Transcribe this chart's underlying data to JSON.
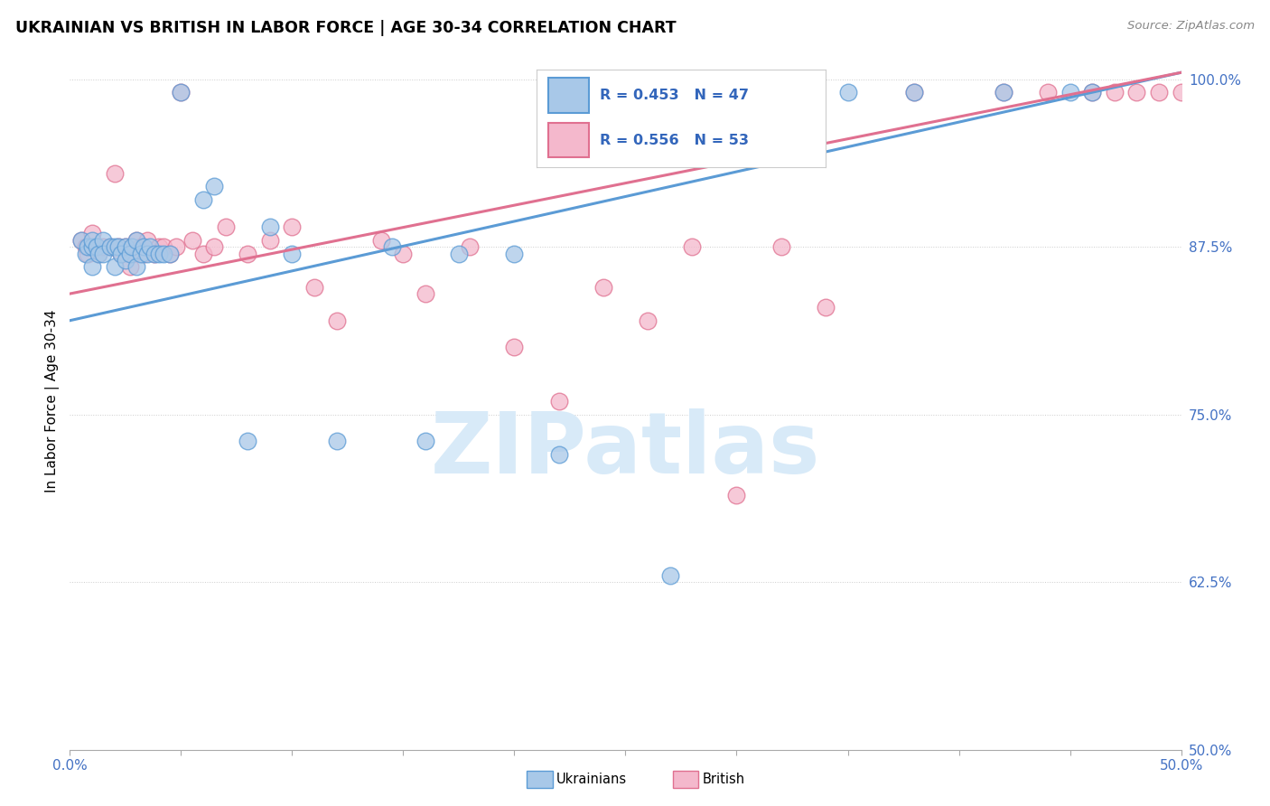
{
  "title": "UKRAINIAN VS BRITISH IN LABOR FORCE | AGE 30-34 CORRELATION CHART",
  "source": "Source: ZipAtlas.com",
  "ylabel": "In Labor Force | Age 30-34",
  "xlim": [
    0.0,
    0.5
  ],
  "ylim": [
    0.5,
    1.02
  ],
  "yticks": [
    0.5,
    0.625,
    0.75,
    0.875,
    1.0
  ],
  "ytick_labels": [
    "50.0%",
    "62.5%",
    "75.0%",
    "87.5%",
    "100.0%"
  ],
  "xticks": [
    0.0,
    0.05,
    0.1,
    0.15,
    0.2,
    0.25,
    0.3,
    0.35,
    0.4,
    0.45,
    0.5
  ],
  "xtick_labels": [
    "0.0%",
    "",
    "",
    "",
    "",
    "",
    "",
    "",
    "",
    "",
    "50.0%"
  ],
  "blue_R": 0.453,
  "blue_N": 47,
  "pink_R": 0.556,
  "pink_N": 53,
  "blue_fill": "#A8C8E8",
  "pink_fill": "#F4B8CC",
  "blue_edge": "#5B9BD5",
  "pink_edge": "#E07090",
  "blue_line": "#5B9BD5",
  "pink_line": "#E07090",
  "watermark_color": "#D8EAF8",
  "blue_scatter_x": [
    0.005,
    0.007,
    0.008,
    0.01,
    0.01,
    0.01,
    0.012,
    0.013,
    0.015,
    0.015,
    0.018,
    0.02,
    0.02,
    0.022,
    0.023,
    0.025,
    0.025,
    0.027,
    0.028,
    0.03,
    0.03,
    0.032,
    0.033,
    0.035,
    0.036,
    0.038,
    0.04,
    0.042,
    0.045,
    0.05,
    0.06,
    0.065,
    0.08,
    0.09,
    0.1,
    0.12,
    0.145,
    0.16,
    0.175,
    0.2,
    0.22,
    0.27,
    0.35,
    0.38,
    0.42,
    0.45,
    0.46
  ],
  "blue_scatter_y": [
    0.88,
    0.87,
    0.875,
    0.875,
    0.88,
    0.86,
    0.875,
    0.87,
    0.88,
    0.87,
    0.875,
    0.875,
    0.86,
    0.875,
    0.87,
    0.875,
    0.865,
    0.87,
    0.875,
    0.88,
    0.86,
    0.87,
    0.875,
    0.87,
    0.875,
    0.87,
    0.87,
    0.87,
    0.87,
    0.99,
    0.91,
    0.92,
    0.73,
    0.89,
    0.87,
    0.73,
    0.875,
    0.73,
    0.87,
    0.87,
    0.72,
    0.63,
    0.99,
    0.99,
    0.99,
    0.99,
    0.99
  ],
  "pink_scatter_x": [
    0.005,
    0.007,
    0.008,
    0.01,
    0.012,
    0.013,
    0.015,
    0.018,
    0.02,
    0.022,
    0.023,
    0.025,
    0.027,
    0.028,
    0.03,
    0.032,
    0.033,
    0.035,
    0.038,
    0.04,
    0.042,
    0.045,
    0.048,
    0.05,
    0.055,
    0.06,
    0.065,
    0.07,
    0.08,
    0.09,
    0.1,
    0.11,
    0.12,
    0.14,
    0.15,
    0.16,
    0.18,
    0.2,
    0.22,
    0.24,
    0.26,
    0.28,
    0.3,
    0.32,
    0.34,
    0.38,
    0.42,
    0.44,
    0.46,
    0.47,
    0.48,
    0.49,
    0.5
  ],
  "pink_scatter_y": [
    0.88,
    0.875,
    0.87,
    0.885,
    0.875,
    0.87,
    0.875,
    0.875,
    0.93,
    0.875,
    0.87,
    0.875,
    0.86,
    0.87,
    0.88,
    0.875,
    0.87,
    0.88,
    0.87,
    0.875,
    0.875,
    0.87,
    0.875,
    0.99,
    0.88,
    0.87,
    0.875,
    0.89,
    0.87,
    0.88,
    0.89,
    0.845,
    0.82,
    0.88,
    0.87,
    0.84,
    0.875,
    0.8,
    0.76,
    0.845,
    0.82,
    0.875,
    0.69,
    0.875,
    0.83,
    0.99,
    0.99,
    0.99,
    0.99,
    0.99,
    0.99,
    0.99,
    0.99
  ],
  "blue_line_x": [
    0.0,
    0.5
  ],
  "blue_line_y": [
    0.82,
    1.005
  ],
  "pink_line_x": [
    0.0,
    0.5
  ],
  "pink_line_y": [
    0.84,
    1.005
  ]
}
